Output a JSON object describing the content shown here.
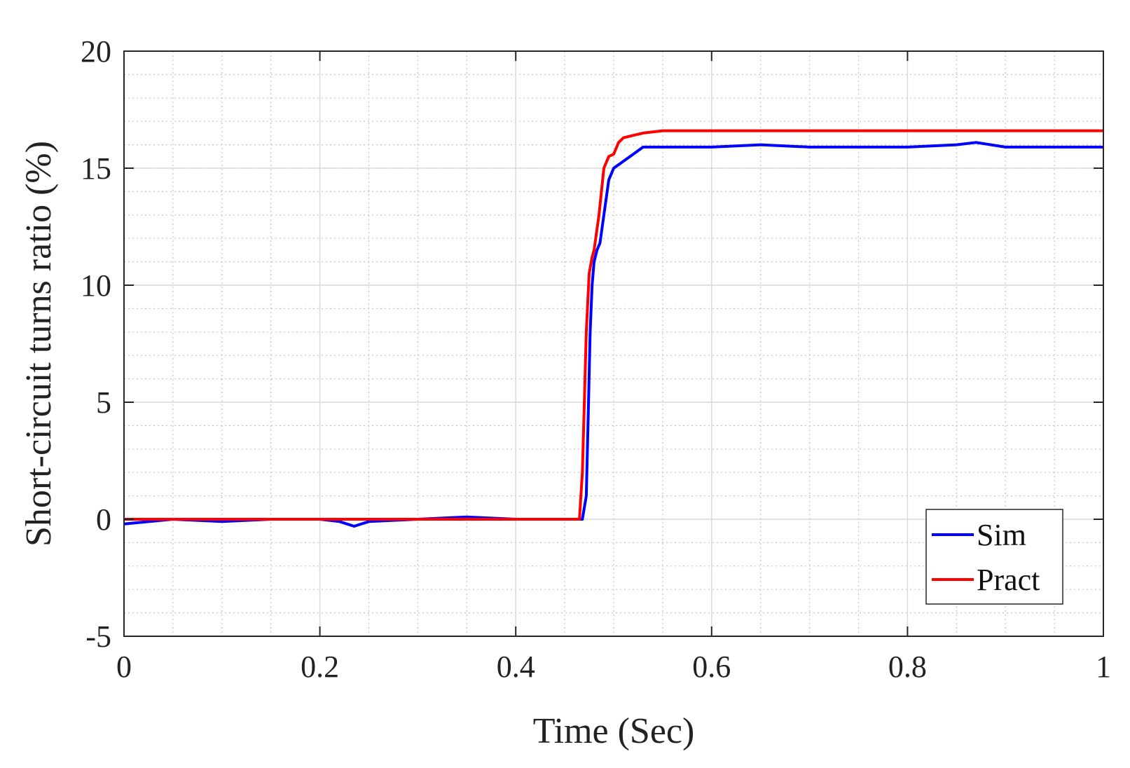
{
  "chart_data": {
    "type": "line",
    "title": "",
    "xlabel": "Time (Sec)",
    "ylabel": "Short-circuit turns ratio (%)",
    "xlim": [
      0,
      1
    ],
    "ylim": [
      -5,
      20
    ],
    "xticks": [
      0,
      0.2,
      0.4,
      0.6,
      0.8,
      1
    ],
    "xtick_labels": [
      "0",
      "0.2",
      "0.4",
      "0.6",
      "0.8",
      "1"
    ],
    "yticks": [
      -5,
      0,
      5,
      10,
      15,
      20
    ],
    "ytick_labels": [
      "-5",
      "0",
      "5",
      "10",
      "15",
      "20"
    ],
    "grid": true,
    "minor_grid": true,
    "legend_position": "bottom-right",
    "series": [
      {
        "name": "Sim",
        "color": "#0000ff",
        "x": [
          0,
          0.05,
          0.1,
          0.15,
          0.2,
          0.22,
          0.235,
          0.25,
          0.3,
          0.35,
          0.4,
          0.45,
          0.468,
          0.472,
          0.474,
          0.476,
          0.478,
          0.48,
          0.483,
          0.486,
          0.49,
          0.495,
          0.5,
          0.51,
          0.52,
          0.53,
          0.55,
          0.6,
          0.65,
          0.7,
          0.75,
          0.8,
          0.85,
          0.87,
          0.9,
          0.95,
          1
        ],
        "y": [
          -0.2,
          0.0,
          -0.1,
          0.0,
          0.0,
          -0.1,
          -0.3,
          -0.1,
          0.0,
          0.1,
          0.0,
          0.0,
          0.0,
          1.0,
          4.5,
          8.0,
          10.0,
          11.0,
          11.5,
          11.8,
          13.0,
          14.5,
          15.0,
          15.3,
          15.6,
          15.9,
          15.9,
          15.9,
          16.0,
          15.9,
          15.9,
          15.9,
          16.0,
          16.1,
          15.9,
          15.9,
          15.9
        ]
      },
      {
        "name": "Pract",
        "color": "#ff0000",
        "x": [
          0,
          0.05,
          0.1,
          0.15,
          0.2,
          0.25,
          0.3,
          0.35,
          0.4,
          0.45,
          0.465,
          0.468,
          0.47,
          0.472,
          0.475,
          0.478,
          0.48,
          0.485,
          0.49,
          0.495,
          0.5,
          0.505,
          0.51,
          0.52,
          0.53,
          0.55,
          0.6,
          0.65,
          0.7,
          0.75,
          0.8,
          0.85,
          0.9,
          0.95,
          1
        ],
        "y": [
          0.0,
          0.0,
          0.0,
          0.0,
          0.0,
          0.0,
          0.0,
          0.0,
          0.0,
          0.0,
          0.0,
          2.0,
          5.0,
          8.0,
          10.5,
          11.2,
          11.5,
          13.0,
          15.0,
          15.5,
          15.6,
          16.1,
          16.3,
          16.4,
          16.5,
          16.6,
          16.6,
          16.6,
          16.6,
          16.6,
          16.6,
          16.6,
          16.6,
          16.6,
          16.6
        ]
      }
    ]
  }
}
